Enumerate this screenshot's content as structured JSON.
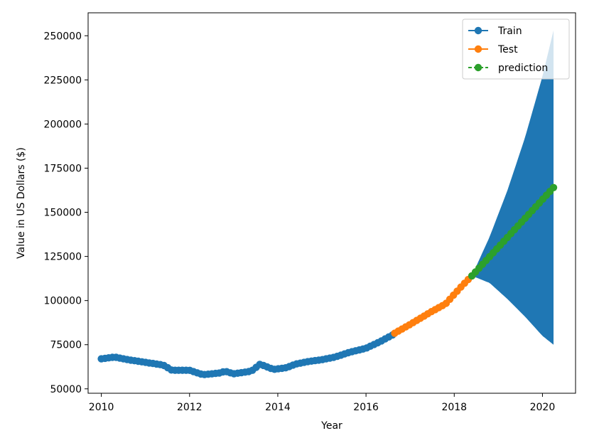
{
  "chart_data": {
    "type": "line",
    "title": "",
    "xlabel": "Year",
    "ylabel": "Value in US Dollars ($)",
    "xlim": [
      2009.7,
      2020.75
    ],
    "ylim": [
      47500,
      263000
    ],
    "x_ticks": [
      2010,
      2012,
      2014,
      2016,
      2018,
      2020
    ],
    "x_tick_labels": [
      "2010",
      "2012",
      "2014",
      "2016",
      "2018",
      "2020"
    ],
    "y_ticks": [
      50000,
      75000,
      100000,
      125000,
      150000,
      175000,
      200000,
      225000,
      250000
    ],
    "y_tick_labels": [
      "50000",
      "75000",
      "100000",
      "125000",
      "150000",
      "175000",
      "200000",
      "225000",
      "250000"
    ],
    "grid": false,
    "legend_position": "top-right",
    "series": [
      {
        "name": "Train",
        "color": "#1f77b4",
        "marker": "circle",
        "line_style": "solid",
        "anchors": [
          [
            2010.0,
            67000
          ],
          [
            2010.3,
            68000
          ],
          [
            2010.6,
            66500
          ],
          [
            2011.0,
            65000
          ],
          [
            2011.4,
            63500
          ],
          [
            2011.6,
            60500
          ],
          [
            2012.0,
            60500
          ],
          [
            2012.3,
            58000
          ],
          [
            2012.7,
            59000
          ],
          [
            2012.8,
            60000
          ],
          [
            2013.0,
            58500
          ],
          [
            2013.4,
            60000
          ],
          [
            2013.6,
            64000
          ],
          [
            2013.9,
            61000
          ],
          [
            2014.2,
            62000
          ],
          [
            2014.4,
            64000
          ],
          [
            2014.7,
            65500
          ],
          [
            2015.0,
            66500
          ],
          [
            2015.3,
            68000
          ],
          [
            2015.6,
            70500
          ],
          [
            2016.0,
            73000
          ],
          [
            2016.3,
            76500
          ],
          [
            2016.6,
            80500
          ]
        ]
      },
      {
        "name": "Test",
        "color": "#ff7f0e",
        "marker": "circle",
        "line_style": "solid",
        "anchors": [
          [
            2016.65,
            81500
          ],
          [
            2017.0,
            86500
          ],
          [
            2017.3,
            91000
          ],
          [
            2017.5,
            94000
          ],
          [
            2017.8,
            98000
          ],
          [
            2018.0,
            103500
          ],
          [
            2018.2,
            109000
          ],
          [
            2018.4,
            114000
          ]
        ]
      },
      {
        "name": "prediction",
        "color": "#2ca02c",
        "marker": "circle",
        "line_style": "dashed",
        "anchors": [
          [
            2018.4,
            114000
          ],
          [
            2020.25,
            164000
          ]
        ]
      }
    ],
    "confidence_band": {
      "color": "#1f77b4",
      "x": [
        2018.4,
        2018.8,
        2019.2,
        2019.6,
        2020.0,
        2020.25
      ],
      "upper": [
        114000,
        136000,
        162000,
        192000,
        227000,
        253000
      ],
      "lower": [
        114000,
        110000,
        101000,
        91000,
        80000,
        75000
      ]
    }
  }
}
